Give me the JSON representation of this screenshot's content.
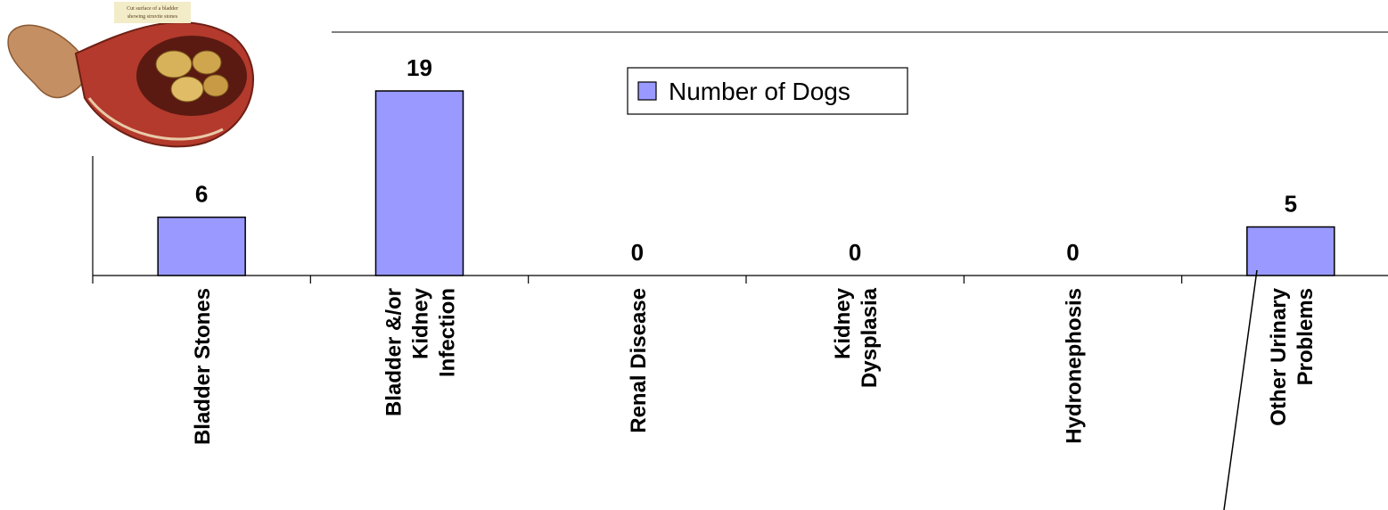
{
  "chart_data": {
    "type": "bar",
    "categories": [
      [
        "Bladder Stones"
      ],
      [
        "Bladder &/or",
        "Kidney",
        "Infection"
      ],
      [
        "Renal Disease"
      ],
      [
        "Kidney",
        "Dysplasia"
      ],
      [
        "Hydronephosis"
      ],
      [
        "Other Urinary",
        "Problems"
      ]
    ],
    "series": [
      {
        "name": "Number of Dogs",
        "values": [
          6,
          19,
          0,
          0,
          0,
          5
        ],
        "color": "#9999ff"
      }
    ],
    "ylim": [
      0,
      19
    ],
    "data_labels": true,
    "legend_position": "top-center",
    "grid": false
  },
  "illustration": {
    "caption_lines": [
      "Cut surface of a bladder",
      "showing struvite stones"
    ]
  }
}
